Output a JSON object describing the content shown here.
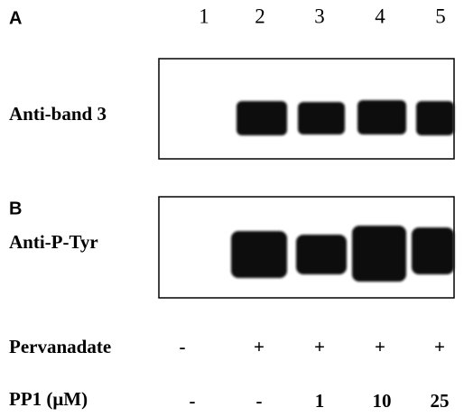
{
  "lanes": [
    "1",
    "2",
    "3",
    "4",
    "5"
  ],
  "panels": [
    {
      "letter": "A",
      "label": "Anti-band 3"
    },
    {
      "letter": "B",
      "label": "Anti-P-Tyr"
    }
  ],
  "conditions": [
    {
      "label": "Pervanadate",
      "values": [
        "-",
        "+",
        "+",
        "+",
        "+"
      ]
    },
    {
      "label": "PP1 (μM)",
      "values": [
        "-",
        "-",
        "1",
        "10",
        "25"
      ]
    }
  ]
}
